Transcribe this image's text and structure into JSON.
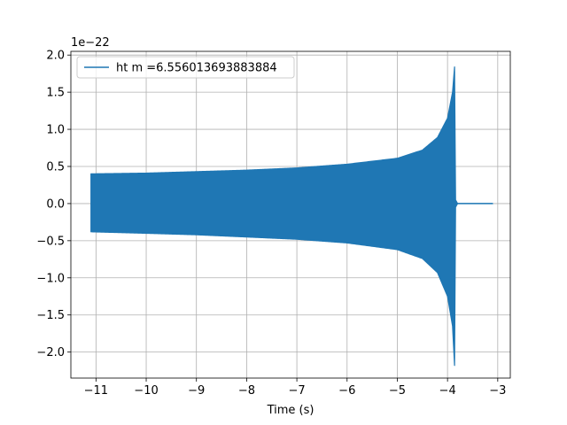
{
  "chart_data": {
    "type": "line",
    "title": "",
    "xlabel": "Time (s)",
    "ylabel": "",
    "y_offset_label": "1e−22",
    "xlim": [
      -11.5,
      -2.75
    ],
    "ylim": [
      -2.35,
      2.05
    ],
    "x_ticks": [
      -11,
      -10,
      -9,
      -8,
      -7,
      -6,
      -5,
      -4,
      -3
    ],
    "x_tick_labels": [
      "−11",
      "−10",
      "−9",
      "−8",
      "−7",
      "−6",
      "−5",
      "−4",
      "−3"
    ],
    "y_ticks": [
      -2.0,
      -1.5,
      -1.0,
      -0.5,
      0.0,
      0.5,
      1.0,
      1.5,
      2.0
    ],
    "y_tick_labels": [
      "−2.0",
      "−1.5",
      "−1.0",
      "−0.5",
      "0.0",
      "0.5",
      "1.0",
      "1.5",
      "2.0"
    ],
    "grid": true,
    "legend_position": "top-left",
    "color": "#1f77b4",
    "series": [
      {
        "name": "ht m =6.556013693883884",
        "color": "#1f77b4",
        "signal_start": -11.1,
        "signal_end": -3.1,
        "envelope_upper": [
          [
            -11.1,
            0.4
          ],
          [
            -10.0,
            0.41
          ],
          [
            -9.0,
            0.43
          ],
          [
            -8.0,
            0.45
          ],
          [
            -7.0,
            0.48
          ],
          [
            -6.0,
            0.53
          ],
          [
            -5.0,
            0.61
          ],
          [
            -4.5,
            0.72
          ],
          [
            -4.2,
            0.89
          ],
          [
            -4.0,
            1.15
          ],
          [
            -3.9,
            1.5
          ],
          [
            -3.86,
            1.84
          ],
          [
            -3.84,
            0.05
          ],
          [
            -3.8,
            0.0
          ],
          [
            -3.1,
            0.0
          ]
        ],
        "envelope_lower": [
          [
            -11.1,
            -0.38
          ],
          [
            -10.0,
            -0.4
          ],
          [
            -9.0,
            -0.42
          ],
          [
            -8.0,
            -0.45
          ],
          [
            -7.0,
            -0.48
          ],
          [
            -6.0,
            -0.53
          ],
          [
            -5.0,
            -0.62
          ],
          [
            -4.5,
            -0.74
          ],
          [
            -4.2,
            -0.93
          ],
          [
            -4.0,
            -1.25
          ],
          [
            -3.9,
            -1.65
          ],
          [
            -3.86,
            -2.18
          ],
          [
            -3.84,
            -0.05
          ],
          [
            -3.8,
            0.0
          ],
          [
            -3.1,
            0.0
          ]
        ]
      }
    ]
  }
}
